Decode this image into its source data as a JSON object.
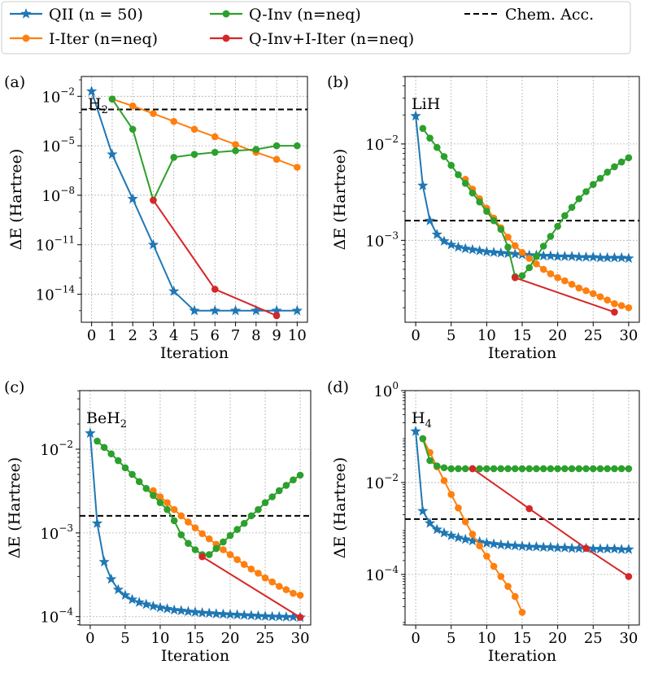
{
  "legend": [
    {
      "key": "qii",
      "label": "QII (n = 50)",
      "color": "#1f77b4",
      "marker": "star",
      "dash": false
    },
    {
      "key": "iiter",
      "label": "I-Iter (n=neq)",
      "color": "#ff7f0e",
      "marker": "circle",
      "dash": false
    },
    {
      "key": "qinv",
      "label": "Q-Inv (n=neq)",
      "color": "#2ca02c",
      "marker": "circle",
      "dash": false
    },
    {
      "key": "qinviter",
      "label": "Q-Inv+I-Iter (n=neq)",
      "color": "#d62728",
      "marker": "circle",
      "dash": false
    },
    {
      "key": "chem",
      "label": "Chem. Acc.",
      "color": "#000000",
      "marker": "none",
      "dash": true
    }
  ],
  "chart_data": [
    {
      "type": "line",
      "panel": "(a)",
      "molecule": "H",
      "subscript": "2",
      "xlabel": "Iteration",
      "ylabel": "ΔE (Hartree)",
      "xlim": [
        -0.5,
        10.5
      ],
      "ylim_log10": [
        -15.7,
        -0.8
      ],
      "xticks": [
        0,
        1,
        2,
        3,
        4,
        5,
        6,
        7,
        8,
        9,
        10
      ],
      "yticks": [
        {
          "exp": -2,
          "label": "10",
          "sup": "−2"
        },
        {
          "exp": -5,
          "label": "10",
          "sup": "−5"
        },
        {
          "exp": -8,
          "label": "10",
          "sup": "−8"
        },
        {
          "exp": -11,
          "label": "10",
          "sup": "−11"
        },
        {
          "exp": -14,
          "label": "10",
          "sup": "−14"
        }
      ],
      "chem_acc": 0.0016,
      "series": [
        {
          "key": "qii",
          "x": [
            0,
            1,
            2,
            3,
            4,
            5,
            6,
            7,
            8,
            9,
            10
          ],
          "y": [
            0.02,
            3e-06,
            6e-09,
            1e-11,
            1.5e-14,
            1e-15,
            1e-15,
            1e-15,
            1e-15,
            1e-15,
            1e-15
          ]
        },
        {
          "key": "iiter",
          "x": [
            1,
            2,
            3,
            4,
            5,
            6,
            7,
            8,
            9,
            10
          ],
          "y": [
            0.0068,
            0.0026,
            0.0009,
            0.0003,
            0.0001,
            3.5e-05,
            1.2e-05,
            4e-06,
            1.5e-06,
            5e-07
          ]
        },
        {
          "key": "qinv",
          "x": [
            1,
            2,
            3,
            4,
            5,
            6,
            7,
            8,
            9,
            10
          ],
          "y": [
            0.0068,
            0.0001,
            5e-09,
            2e-06,
            3e-06,
            4e-06,
            5e-06,
            6e-06,
            1e-05,
            1e-05
          ]
        },
        {
          "key": "qinviter",
          "x": [
            3,
            6,
            9
          ],
          "y": [
            5e-09,
            2e-14,
            5e-16
          ]
        }
      ]
    },
    {
      "type": "line",
      "panel": "(b)",
      "molecule": "LiH",
      "subscript": "",
      "xlabel": "Iteration",
      "ylabel": "ΔE (Hartree)",
      "xlim": [
        -1.5,
        31.5
      ],
      "ylim_log10": [
        -3.85,
        -1.3
      ],
      "xticks": [
        0,
        5,
        10,
        15,
        20,
        25,
        30
      ],
      "yticks": [
        {
          "exp": -2,
          "label": "10",
          "sup": "−2"
        },
        {
          "exp": -3,
          "label": "10",
          "sup": "−3"
        }
      ],
      "chem_acc": 0.0016,
      "series": [
        {
          "key": "qii",
          "x": [
            0,
            1,
            2,
            3,
            4,
            5,
            6,
            7,
            8,
            9,
            10,
            11,
            12,
            13,
            14,
            15,
            16,
            17,
            18,
            19,
            20,
            21,
            22,
            23,
            24,
            25,
            26,
            27,
            28,
            29,
            30
          ],
          "y": [
            0.0195,
            0.0037,
            0.0016,
            0.00115,
            0.00098,
            0.0009,
            0.00085,
            0.00082,
            0.0008,
            0.00078,
            0.00076,
            0.00075,
            0.00074,
            0.00073,
            0.00072,
            0.00071,
            0.0007,
            0.0007,
            0.00069,
            0.00069,
            0.00068,
            0.00068,
            0.00068,
            0.00067,
            0.00067,
            0.00067,
            0.00066,
            0.00066,
            0.00066,
            0.00066,
            0.00065
          ]
        },
        {
          "key": "iiter",
          "x": [
            7,
            8,
            9,
            10,
            11,
            12,
            13,
            14,
            15,
            16,
            17,
            18,
            19,
            20,
            21,
            22,
            23,
            24,
            25,
            26,
            27,
            28,
            29,
            30
          ],
          "y": [
            0.0043,
            0.0034,
            0.0027,
            0.00215,
            0.0017,
            0.00135,
            0.00108,
            0.00088,
            0.00075,
            0.00065,
            0.00057,
            0.0005,
            0.00045,
            0.00041,
            0.00038,
            0.00035,
            0.00032,
            0.0003,
            0.00028,
            0.00026,
            0.00024,
            0.00022,
            0.00021,
            0.0002
          ]
        },
        {
          "key": "qinv",
          "x": [
            1,
            2,
            3,
            4,
            5,
            6,
            7,
            8,
            9,
            10,
            11,
            12,
            13,
            14,
            15,
            16,
            17,
            18,
            19,
            20,
            21,
            22,
            23,
            24,
            25,
            26,
            27,
            28,
            29,
            30
          ],
          "y": [
            0.0145,
            0.0115,
            0.0092,
            0.0074,
            0.006,
            0.0048,
            0.0039,
            0.0031,
            0.0025,
            0.002,
            0.0016,
            0.0013,
            0.00085,
            0.00042,
            0.00043,
            0.00052,
            0.00068,
            0.00087,
            0.0011,
            0.0014,
            0.0018,
            0.0022,
            0.0027,
            0.0032,
            0.0038,
            0.0044,
            0.0051,
            0.0058,
            0.0065,
            0.0072
          ]
        },
        {
          "key": "qinviter",
          "x": [
            14,
            28
          ],
          "y": [
            0.00041,
            0.00018
          ]
        }
      ]
    },
    {
      "type": "line",
      "panel": "(c)",
      "molecule": "BeH",
      "subscript": "2",
      "xlabel": "Iteration",
      "ylabel": "ΔE (Hartree)",
      "xlim": [
        -1.5,
        31.5
      ],
      "ylim_log10": [
        -4.1,
        -1.3
      ],
      "xticks": [
        0,
        5,
        10,
        15,
        20,
        25,
        30
      ],
      "yticks": [
        {
          "exp": -2,
          "label": "10",
          "sup": "−2"
        },
        {
          "exp": -3,
          "label": "10",
          "sup": "−3"
        },
        {
          "exp": -4,
          "label": "10",
          "sup": "−4"
        }
      ],
      "chem_acc": 0.0016,
      "series": [
        {
          "key": "qii",
          "x": [
            0,
            1,
            2,
            3,
            4,
            5,
            6,
            7,
            8,
            9,
            10,
            11,
            12,
            13,
            14,
            15,
            16,
            17,
            18,
            19,
            20,
            21,
            22,
            23,
            24,
            25,
            26,
            27,
            28,
            29,
            30
          ],
          "y": [
            0.0155,
            0.0013,
            0.00045,
            0.00028,
            0.00021,
            0.00018,
            0.00016,
            0.000148,
            0.00014,
            0.000133,
            0.000128,
            0.000124,
            0.00012,
            0.000118,
            0.000115,
            0.000113,
            0.000111,
            0.00011,
            0.000108,
            0.000107,
            0.000106,
            0.000105,
            0.000104,
            0.000103,
            0.000102,
            0.000101,
            0.0001,
            0.0001,
            9.9e-05,
            9.9e-05,
            9.8e-05
          ]
        },
        {
          "key": "iiter",
          "x": [
            9,
            10,
            11,
            12,
            13,
            14,
            15,
            16,
            17,
            18,
            19,
            20,
            21,
            22,
            23,
            24,
            25,
            26,
            27,
            28,
            29,
            30
          ],
          "y": [
            0.0032,
            0.0027,
            0.0023,
            0.0019,
            0.0016,
            0.00135,
            0.00115,
            0.00098,
            0.00085,
            0.00073,
            0.00063,
            0.00055,
            0.00048,
            0.00042,
            0.00037,
            0.00033,
            0.00029,
            0.00026,
            0.00023,
            0.00021,
            0.00019,
            0.00018
          ]
        },
        {
          "key": "qinv",
          "x": [
            1,
            2,
            3,
            4,
            5,
            6,
            7,
            8,
            9,
            10,
            11,
            12,
            13,
            14,
            15,
            16,
            17,
            18,
            19,
            20,
            21,
            22,
            23,
            24,
            25,
            26,
            27,
            28,
            29,
            30
          ],
          "y": [
            0.0125,
            0.0105,
            0.0088,
            0.0073,
            0.006,
            0.005,
            0.0041,
            0.0034,
            0.0028,
            0.0023,
            0.0019,
            0.0014,
            0.00095,
            0.00075,
            0.00063,
            0.00055,
            0.00055,
            0.00065,
            0.00078,
            0.00093,
            0.0011,
            0.0013,
            0.0016,
            0.0019,
            0.0023,
            0.0027,
            0.0032,
            0.0037,
            0.0043,
            0.0049
          ]
        },
        {
          "key": "qinviter",
          "x": [
            16,
            30
          ],
          "y": [
            0.00052,
            9.8e-05
          ]
        }
      ]
    },
    {
      "type": "line",
      "panel": "(d)",
      "molecule": "H",
      "subscript": "4",
      "xlabel": "Iteration",
      "ylabel": "ΔE (Hartree)",
      "xlim": [
        -1.5,
        31.5
      ],
      "ylim_log10": [
        -5.1,
        0
      ],
      "xticks": [
        0,
        5,
        10,
        15,
        20,
        25,
        30
      ],
      "yticks": [
        {
          "exp": 0,
          "label": "10",
          "sup": "0"
        },
        {
          "exp": -2,
          "label": "10",
          "sup": "−2"
        },
        {
          "exp": -4,
          "label": "10",
          "sup": "−4"
        }
      ],
      "chem_acc": 0.0016,
      "series": [
        {
          "key": "qii",
          "x": [
            0,
            1,
            2,
            3,
            4,
            5,
            6,
            7,
            8,
            9,
            10,
            11,
            12,
            13,
            14,
            15,
            16,
            17,
            18,
            19,
            20,
            21,
            22,
            23,
            24,
            25,
            26,
            27,
            28,
            29,
            30
          ],
          "y": [
            0.13,
            0.0024,
            0.0013,
            0.00095,
            0.0008,
            0.0007,
            0.00063,
            0.00058,
            0.00054,
            0.00051,
            0.00048,
            0.00046,
            0.00044,
            0.00043,
            0.00042,
            0.00041,
            0.0004,
            0.0004,
            0.00039,
            0.00039,
            0.00038,
            0.00038,
            0.00037,
            0.00037,
            0.00037,
            0.00036,
            0.00036,
            0.00036,
            0.00036,
            0.00035,
            0.00035
          ]
        },
        {
          "key": "iiter",
          "x": [
            1,
            2,
            3,
            4,
            5,
            6,
            7,
            8,
            9,
            10,
            11,
            12,
            13,
            14,
            15
          ],
          "y": [
            0.09,
            0.045,
            0.022,
            0.011,
            0.0055,
            0.0028,
            0.0014,
            0.00075,
            0.00042,
            0.00025,
            0.00015,
            9e-05,
            5.5e-05,
            3.3e-05,
            1.5e-05
          ]
        },
        {
          "key": "qinv",
          "x": [
            1,
            2,
            3,
            4,
            5,
            6,
            7,
            8,
            9,
            10,
            11,
            12,
            13,
            14,
            15,
            16,
            17,
            18,
            19,
            20,
            21,
            22,
            23,
            24,
            25,
            26,
            27,
            28,
            29,
            30
          ],
          "y": [
            0.09,
            0.03,
            0.023,
            0.021,
            0.02,
            0.02,
            0.02,
            0.02,
            0.02,
            0.02,
            0.02,
            0.02,
            0.02,
            0.02,
            0.02,
            0.02,
            0.02,
            0.02,
            0.02,
            0.02,
            0.02,
            0.02,
            0.02,
            0.02,
            0.02,
            0.02,
            0.02,
            0.02,
            0.02,
            0.02
          ]
        },
        {
          "key": "qinviter",
          "x": [
            8,
            16,
            24,
            30
          ],
          "y": [
            0.02,
            0.0027,
            0.00037,
            9e-05
          ]
        }
      ]
    }
  ]
}
